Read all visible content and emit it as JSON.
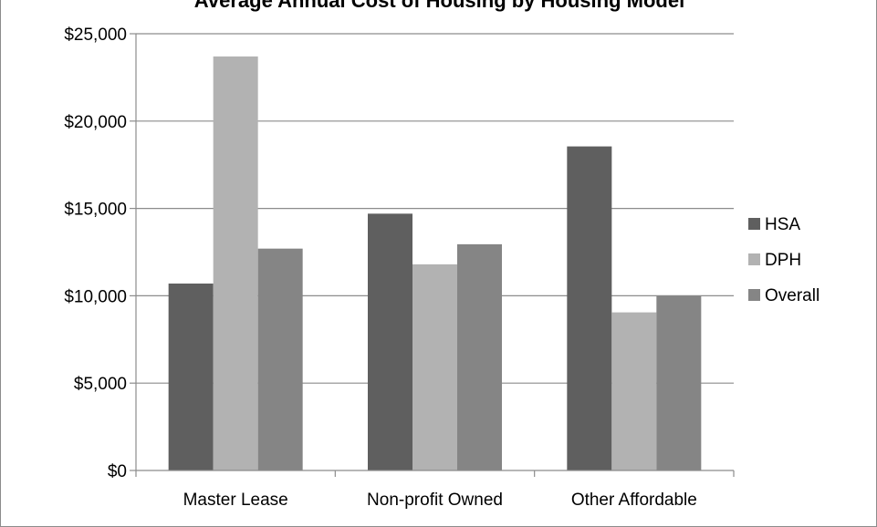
{
  "chart_data": {
    "type": "bar",
    "title": "Average Annual Cost of Housing by Housing Model",
    "categories": [
      "Master Lease",
      "Non-profit Owned",
      "Other Affordable"
    ],
    "series": [
      {
        "name": "HSA",
        "values": [
          10700,
          14700,
          18550
        ],
        "color": "#5f5f5f"
      },
      {
        "name": "DPH",
        "values": [
          23700,
          11800,
          9050
        ],
        "color": "#b2b2b2"
      },
      {
        "name": "Overall",
        "values": [
          12700,
          12950,
          10000
        ],
        "color": "#858585"
      }
    ],
    "y_ticks": [
      "$0",
      "$5,000",
      "$10,000",
      "$15,000",
      "$20,000",
      "$25,000"
    ],
    "ylim": [
      0,
      25000
    ],
    "grid": true,
    "legend_position": "right"
  }
}
